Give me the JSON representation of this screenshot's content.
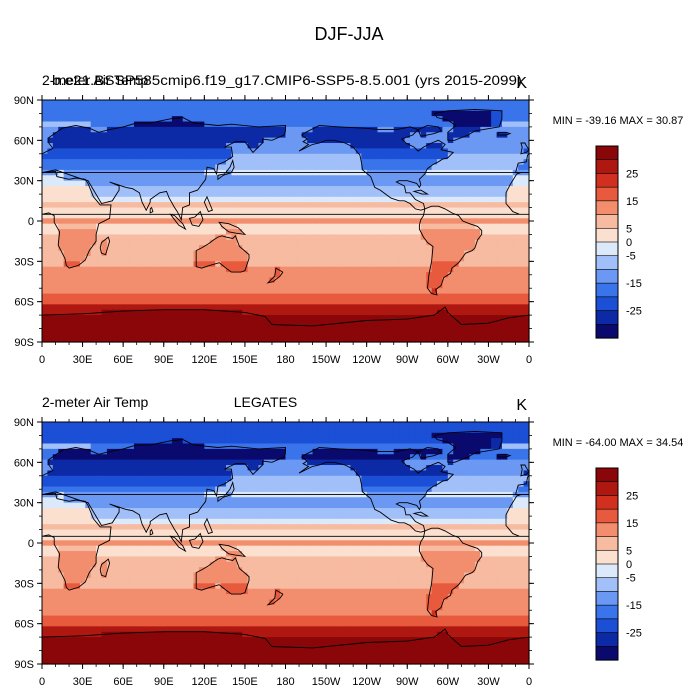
{
  "figure_title": "DJF-JJA",
  "colors": {
    "palette": [
      "#0a0a6e",
      "#0c2aa6",
      "#1a4fd6",
      "#3a74ea",
      "#6a98f3",
      "#a1bff8",
      "#dbe9fb",
      "#fbe0d0",
      "#f7bba1",
      "#f28e6e",
      "#e85a3d",
      "#d1301e",
      "#ae1810",
      "#8a0608"
    ],
    "land_outline": "#000000"
  },
  "chart_data": [
    {
      "type": "heatmap",
      "left_title": "2-meter Air Temp",
      "center_title": "b.e21.BSSP585cmip6.f19_g17.CMIP6-SSP5-8.5.001 (yrs 2015-2099)",
      "units": "K",
      "stats": "MIN = -39.16 MAX =  30.87",
      "min": -39.16,
      "max": 30.87,
      "x_ticks": [
        "0",
        "30E",
        "60E",
        "90E",
        "120E",
        "150E",
        "180",
        "150W",
        "120W",
        "90W",
        "60W",
        "30W",
        "0"
      ],
      "y_ticks": [
        "90N",
        "60N",
        "30N",
        "0",
        "30S",
        "60S",
        "90S"
      ],
      "xlim": [
        0,
        360
      ],
      "ylim": [
        -90,
        90
      ],
      "colorbar_levels": [
        -30,
        -25,
        -20,
        -15,
        -10,
        -5,
        0,
        5,
        10,
        15,
        20,
        25,
        30
      ],
      "colorbar_labels": [
        "25",
        "15",
        "5",
        "0",
        "-5",
        "-15",
        "-25"
      ],
      "colorbar_label_values": [
        25,
        15,
        5,
        0,
        -5,
        -15,
        -25
      ]
    },
    {
      "type": "heatmap",
      "left_title": "2-meter Air Temp",
      "center_title": "LEGATES",
      "units": "K",
      "stats": "MIN = -64.00 MAX =  34.54",
      "min": -64.0,
      "max": 34.54,
      "x_ticks": [
        "0",
        "30E",
        "60E",
        "90E",
        "120E",
        "150E",
        "180",
        "150W",
        "120W",
        "90W",
        "60W",
        "30W",
        "0"
      ],
      "y_ticks": [
        "90N",
        "60N",
        "30N",
        "0",
        "30S",
        "60S",
        "90S"
      ],
      "xlim": [
        0,
        360
      ],
      "ylim": [
        -90,
        90
      ],
      "colorbar_levels": [
        -30,
        -25,
        -20,
        -15,
        -10,
        -5,
        0,
        5,
        10,
        15,
        20,
        25,
        30
      ],
      "colorbar_labels": [
        "25",
        "15",
        "5",
        "0",
        "-5",
        "-15",
        "-25"
      ],
      "colorbar_label_values": [
        25,
        15,
        5,
        0,
        -5,
        -15,
        -25
      ]
    }
  ]
}
